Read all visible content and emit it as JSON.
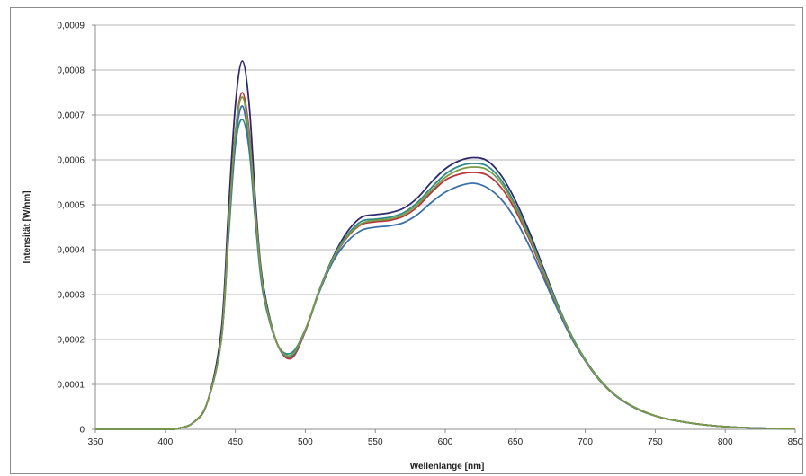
{
  "chart_data": {
    "type": "line",
    "xlabel": "Wellenlänge [nm]",
    "ylabel": "Intensität [W/nm]",
    "xlim": [
      350,
      850
    ],
    "ylim": [
      0,
      0.0009
    ],
    "x_ticks": [
      350,
      400,
      450,
      500,
      550,
      600,
      650,
      700,
      750,
      800,
      850
    ],
    "y_ticks": [
      0,
      0.0001,
      0.0002,
      0.0003,
      0.0004,
      0.0005,
      0.0006,
      0.0007,
      0.0008,
      0.0009
    ],
    "x_tick_labels": [
      "350",
      "400",
      "450",
      "500",
      "550",
      "600",
      "650",
      "700",
      "750",
      "800",
      "850"
    ],
    "y_tick_labels": [
      "0",
      "0,0001",
      "0,0002",
      "0,0003",
      "0,0004",
      "0,0005",
      "0,0006",
      "0,0007",
      "0,0008",
      "0,0009"
    ],
    "grid": {
      "horizontal": true,
      "vertical": false
    },
    "legend": "none",
    "x": [
      350,
      400,
      410,
      420,
      430,
      440,
      445,
      450,
      455,
      460,
      465,
      470,
      480,
      490,
      500,
      510,
      520,
      530,
      540,
      550,
      560,
      570,
      580,
      590,
      600,
      610,
      620,
      630,
      640,
      650,
      660,
      670,
      680,
      690,
      700,
      710,
      720,
      730,
      740,
      750,
      760,
      780,
      800,
      820,
      850
    ],
    "series": [
      {
        "color": "#2e2a6e",
        "values": [
          0,
          0,
          3e-06,
          1.5e-05,
          6e-05,
          0.00022,
          0.00048,
          0.00072,
          0.00082,
          0.00072,
          0.00048,
          0.00032,
          0.00019,
          0.000165,
          0.00022,
          0.00031,
          0.000385,
          0.00044,
          0.000472,
          0.000478,
          0.000482,
          0.000492,
          0.000515,
          0.00055,
          0.00058,
          0.000598,
          0.000605,
          0.000598,
          0.000565,
          0.00051,
          0.00044,
          0.00036,
          0.00028,
          0.00021,
          0.000155,
          0.000112,
          8e-05,
          5.8e-05,
          4.2e-05,
          3e-05,
          2.2e-05,
          1.2e-05,
          6e-06,
          3e-06,
          1e-06
        ]
      },
      {
        "color": "#2f8a86",
        "values": [
          0,
          0,
          3e-06,
          1.5e-05,
          6e-05,
          0.0002,
          0.00042,
          0.00063,
          0.00069,
          0.00062,
          0.00044,
          0.0003,
          0.00019,
          0.00017,
          0.000222,
          0.00031,
          0.000383,
          0.000433,
          0.000463,
          0.000468,
          0.000472,
          0.000482,
          0.000505,
          0.000538,
          0.000568,
          0.000586,
          0.000592,
          0.000586,
          0.000555,
          0.0005,
          0.000432,
          0.000355,
          0.000278,
          0.00021,
          0.000155,
          0.000112,
          8e-05,
          5.8e-05,
          4.2e-05,
          3e-05,
          2.2e-05,
          1.2e-05,
          6e-06,
          3e-06,
          1e-06
        ]
      },
      {
        "color": "#b8353a",
        "values": [
          0,
          0,
          3e-06,
          1.5e-05,
          6e-05,
          0.0002,
          0.00044,
          0.00066,
          0.00075,
          0.00066,
          0.00046,
          0.00031,
          0.00019,
          0.000158,
          0.000218,
          0.000308,
          0.00038,
          0.000428,
          0.000456,
          0.000462,
          0.000465,
          0.000474,
          0.000495,
          0.000527,
          0.000555,
          0.000568,
          0.000572,
          0.000566,
          0.000538,
          0.000488,
          0.000423,
          0.000348,
          0.000273,
          0.000207,
          0.000153,
          0.00011,
          7.9e-05,
          5.7e-05,
          4.1e-05,
          3e-05,
          2.2e-05,
          1.2e-05,
          6e-06,
          3e-06,
          1e-06
        ]
      },
      {
        "color": "#3a6fa8",
        "values": [
          0,
          0,
          3e-06,
          1.5e-05,
          6e-05,
          0.0002,
          0.00043,
          0.00064,
          0.00072,
          0.00063,
          0.00045,
          0.00031,
          0.00019,
          0.000162,
          0.00022,
          0.000306,
          0.000375,
          0.000418,
          0.000443,
          0.00045,
          0.000453,
          0.00046,
          0.000478,
          0.000505,
          0.000528,
          0.000542,
          0.000548,
          0.000538,
          0.000512,
          0.000468,
          0.000408,
          0.000338,
          0.000268,
          0.000204,
          0.000152,
          0.00011,
          7.9e-05,
          5.7e-05,
          4.1e-05,
          3e-05,
          2.2e-05,
          1.2e-05,
          6e-06,
          3e-06,
          1e-06
        ]
      },
      {
        "color": "#7a9a46",
        "values": [
          0,
          0,
          3e-06,
          1.5e-05,
          6e-05,
          0.0002,
          0.00044,
          0.00066,
          0.00074,
          0.00065,
          0.00046,
          0.00031,
          0.00019,
          0.000165,
          0.000221,
          0.000309,
          0.000381,
          0.00043,
          0.000458,
          0.000465,
          0.000468,
          0.000478,
          0.0005,
          0.000532,
          0.000561,
          0.000578,
          0.000584,
          0.000578,
          0.000548,
          0.000495,
          0.000428,
          0.000352,
          0.000276,
          0.000209,
          0.000154,
          0.000111,
          8e-05,
          5.8e-05,
          4.2e-05,
          3e-05,
          2.2e-05,
          1.2e-05,
          6e-06,
          3e-06,
          1e-06
        ]
      }
    ]
  }
}
